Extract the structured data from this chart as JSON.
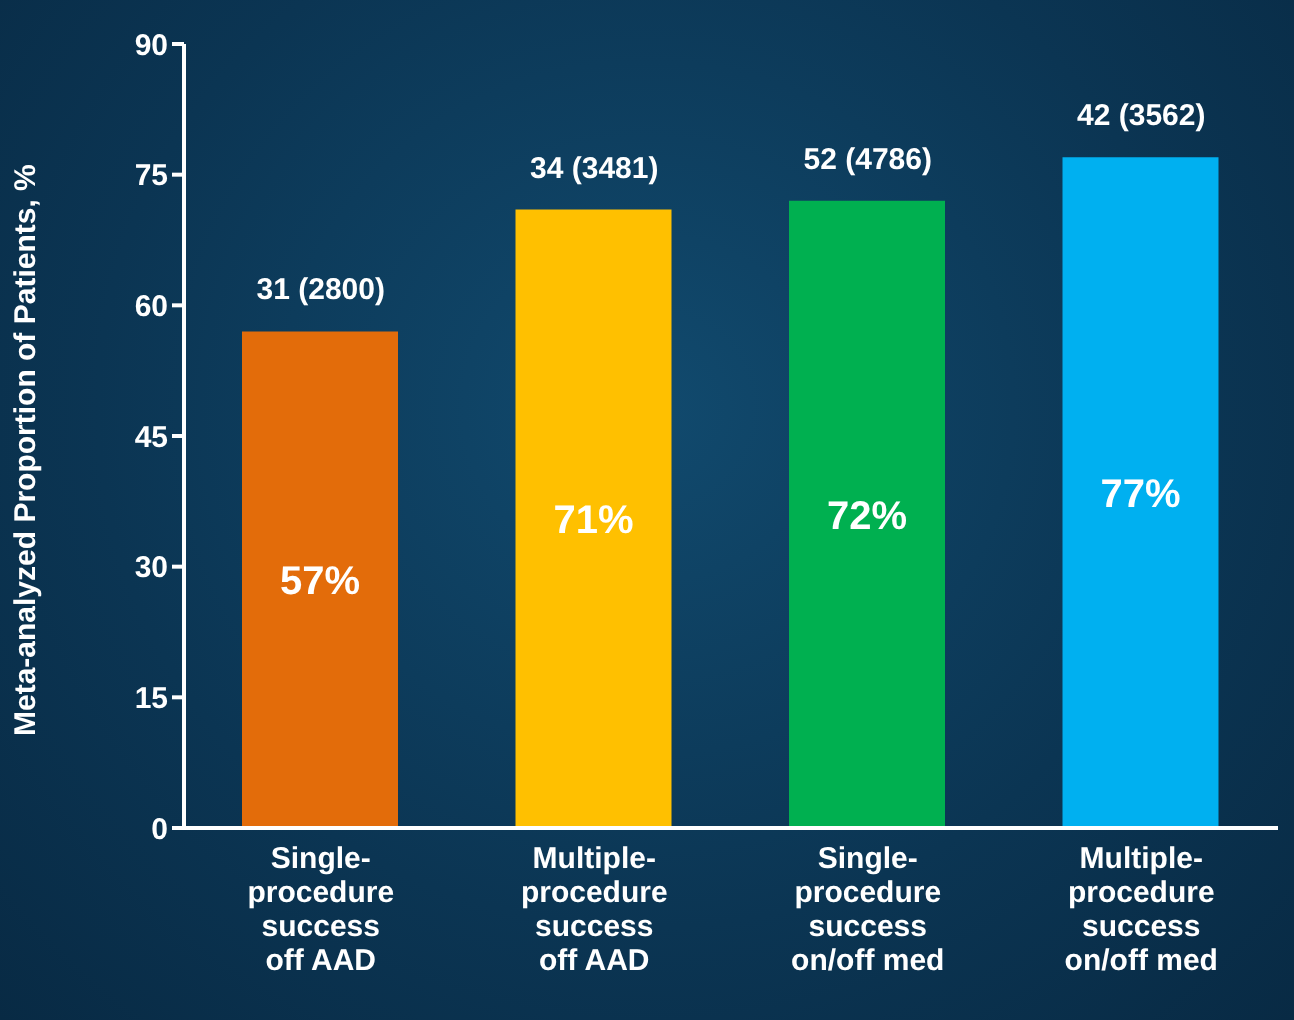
{
  "chart_data": {
    "type": "bar",
    "ylabel": "Meta-analyzed Proportion of Patients, %",
    "categories": [
      "Single-procedure success off AAD",
      "Multiple-procedure success off AAD",
      "Single-procedure success on/off med",
      "Multiple-procedure success on/off med"
    ],
    "values": [
      57,
      71,
      72,
      77
    ],
    "colors": [
      "#e36c0a",
      "#ffc000",
      "#00b050",
      "#00b0f0"
    ],
    "value_labels": [
      "57%",
      "71%",
      "72%",
      "77%"
    ],
    "annotations": [
      {
        "text": "31 (2800)",
        "x": "Single-procedure success off AAD",
        "y": 57
      },
      {
        "text": "34 (3481)",
        "x": "Multiple-procedure success off AAD",
        "y": 71
      },
      {
        "text": "52 (4786)",
        "x": "Single-procedure success on/off med",
        "y": 72
      },
      {
        "text": "42 (3562)",
        "x": "Multiple-procedure success on/off med",
        "y": 77
      }
    ],
    "ylim": [
      0,
      90
    ],
    "yticks": [
      0,
      15,
      30,
      45,
      60,
      75,
      90
    ],
    "grid": false,
    "legend": false
  }
}
